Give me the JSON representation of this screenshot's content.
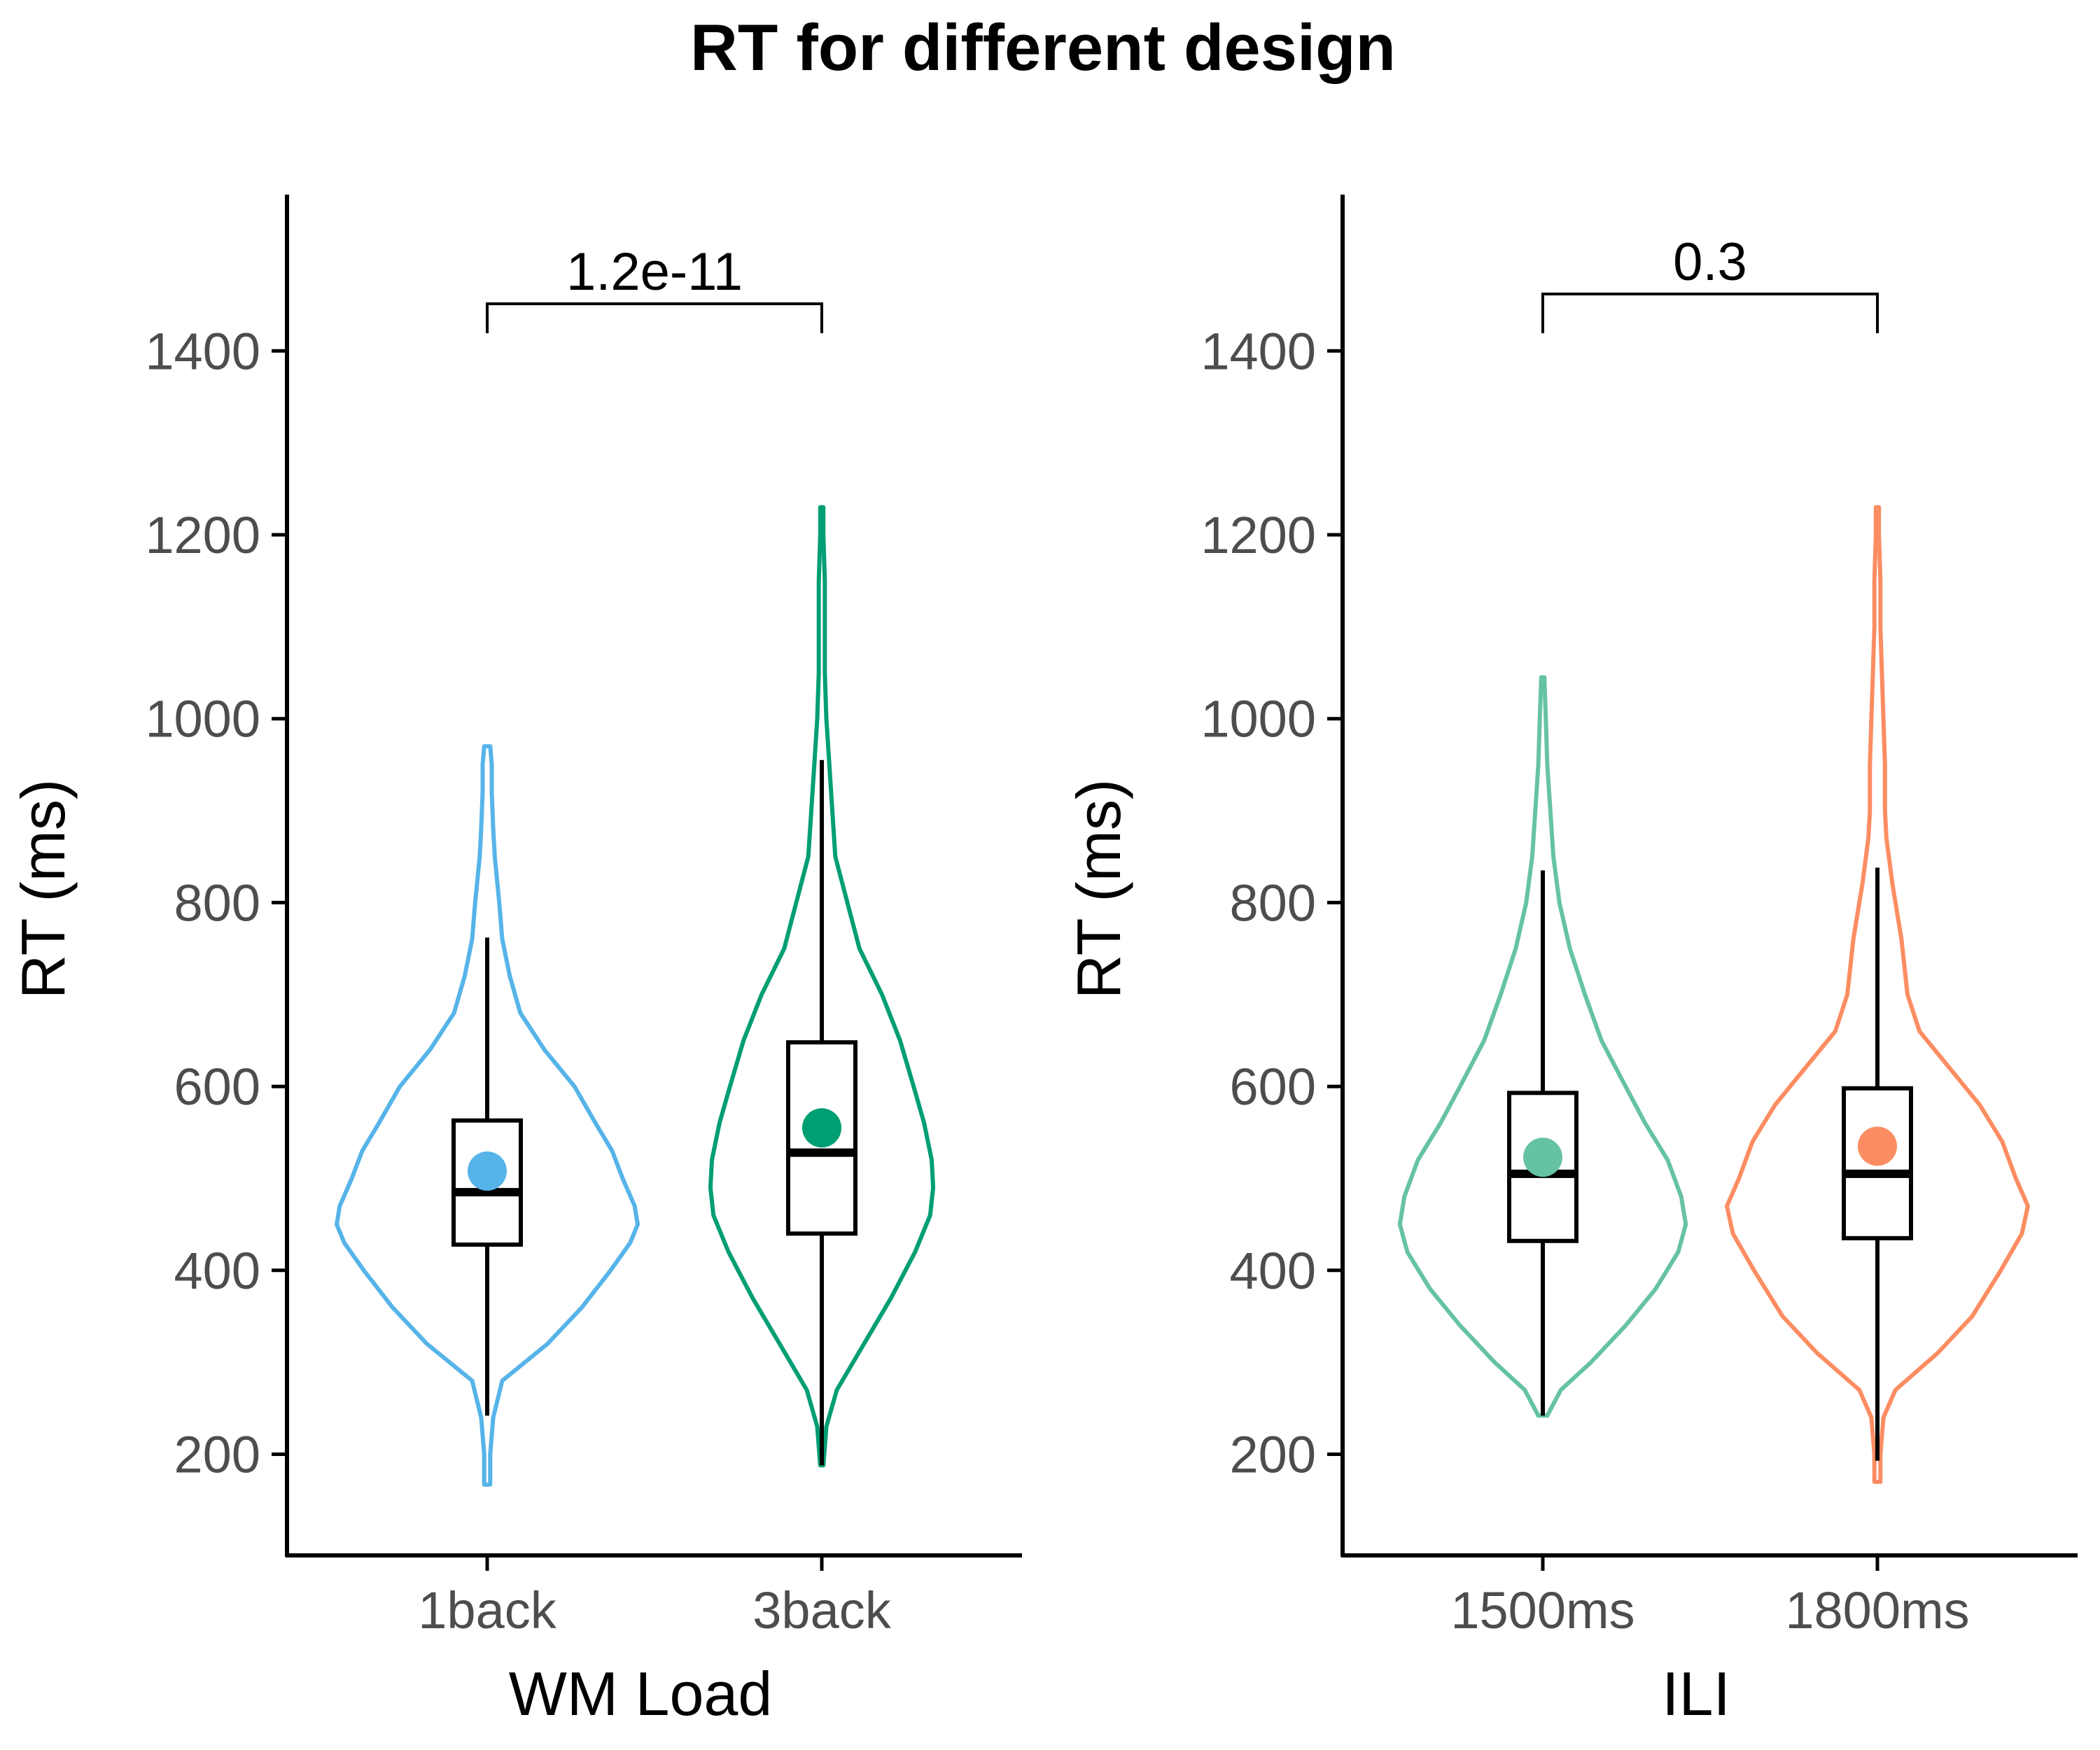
{
  "title": "RT for different design",
  "colors": {
    "axis": "#000000",
    "tick_text": "#4d4d4d",
    "box": "#000000",
    "1back": "#56B4E9",
    "3back": "#009E73",
    "1500ms": "#66C2A5",
    "1800ms": "#FC8D62"
  },
  "chart_data": [
    {
      "type": "violin",
      "title": "RT for different design",
      "xlabel": "WM Load",
      "ylabel": "RT (ms)",
      "ylim": [
        90,
        1570
      ],
      "yticks": [
        200,
        400,
        600,
        800,
        1000,
        1200,
        1400
      ],
      "ytick_labels": [
        "200",
        "400",
        "600",
        "800",
        "1000",
        "1200",
        "1400"
      ],
      "categories": [
        "1back",
        "3back"
      ],
      "grid": false,
      "comparison": {
        "from": "1back",
        "to": "3back",
        "label": "1.2e-11"
      },
      "series": [
        {
          "category": "1back",
          "color": "#56B4E9",
          "mean": 508,
          "box": {
            "whisker_low": 242,
            "q1": 428,
            "median": 485,
            "q3": 563,
            "whisker_high": 762
          },
          "density": [
            [
              167,
              0.02
            ],
            [
              200,
              0.02
            ],
            [
              240,
              0.04
            ],
            [
              280,
              0.1
            ],
            [
              320,
              0.4
            ],
            [
              360,
              0.63
            ],
            [
              400,
              0.82
            ],
            [
              430,
              0.95
            ],
            [
              450,
              1.0
            ],
            [
              470,
              0.98
            ],
            [
              500,
              0.9
            ],
            [
              530,
              0.83
            ],
            [
              560,
              0.72
            ],
            [
              600,
              0.58
            ],
            [
              640,
              0.38
            ],
            [
              680,
              0.22
            ],
            [
              720,
              0.15
            ],
            [
              760,
              0.1
            ],
            [
              800,
              0.08
            ],
            [
              850,
              0.05
            ],
            [
              880,
              0.04
            ],
            [
              920,
              0.03
            ],
            [
              950,
              0.03
            ],
            [
              970,
              0.02
            ]
          ]
        },
        {
          "category": "3back",
          "color": "#009E73",
          "mean": 555,
          "box": {
            "whisker_low": 188,
            "q1": 440,
            "median": 528,
            "q3": 648,
            "whisker_high": 955
          },
          "density": [
            [
              188,
              0.01
            ],
            [
              230,
              0.03
            ],
            [
              270,
              0.1
            ],
            [
              320,
              0.28
            ],
            [
              370,
              0.46
            ],
            [
              420,
              0.62
            ],
            [
              460,
              0.72
            ],
            [
              490,
              0.74
            ],
            [
              520,
              0.73
            ],
            [
              560,
              0.68
            ],
            [
              600,
              0.61
            ],
            [
              650,
              0.52
            ],
            [
              700,
              0.4
            ],
            [
              750,
              0.25
            ],
            [
              800,
              0.17
            ],
            [
              850,
              0.09
            ],
            [
              900,
              0.07
            ],
            [
              950,
              0.05
            ],
            [
              1000,
              0.03
            ],
            [
              1050,
              0.02
            ],
            [
              1100,
              0.02
            ],
            [
              1150,
              0.02
            ],
            [
              1200,
              0.01
            ],
            [
              1230,
              0.01
            ]
          ]
        }
      ]
    },
    {
      "type": "violin",
      "xlabel": "ILI",
      "ylabel": "RT (ms)",
      "ylim": [
        90,
        1570
      ],
      "yticks": [
        200,
        400,
        600,
        800,
        1000,
        1200,
        1400
      ],
      "ytick_labels": [
        "200",
        "400",
        "600",
        "800",
        "1000",
        "1200",
        "1400"
      ],
      "categories": [
        "1500ms",
        "1800ms"
      ],
      "grid": false,
      "comparison": {
        "from": "1500ms",
        "to": "1800ms",
        "label": "0.3"
      },
      "series": [
        {
          "category": "1500ms",
          "color": "#66C2A5",
          "mean": 523,
          "box": {
            "whisker_low": 242,
            "q1": 432,
            "median": 505,
            "q3": 593,
            "whisker_high": 835
          },
          "density": [
            [
              242,
              0.03
            ],
            [
              270,
              0.12
            ],
            [
              300,
              0.32
            ],
            [
              340,
              0.55
            ],
            [
              380,
              0.75
            ],
            [
              420,
              0.9
            ],
            [
              450,
              0.95
            ],
            [
              480,
              0.92
            ],
            [
              520,
              0.83
            ],
            [
              560,
              0.68
            ],
            [
              600,
              0.55
            ],
            [
              650,
              0.39
            ],
            [
              700,
              0.28
            ],
            [
              750,
              0.18
            ],
            [
              800,
              0.11
            ],
            [
              850,
              0.07
            ],
            [
              900,
              0.05
            ],
            [
              950,
              0.03
            ],
            [
              1000,
              0.02
            ],
            [
              1045,
              0.01
            ]
          ]
        },
        {
          "category": "1800ms",
          "color": "#FC8D62",
          "mean": 535,
          "box": {
            "whisker_low": 193,
            "q1": 435,
            "median": 505,
            "q3": 598,
            "whisker_high": 838
          },
          "density": [
            [
              170,
              0.02
            ],
            [
              200,
              0.02
            ],
            [
              240,
              0.04
            ],
            [
              270,
              0.12
            ],
            [
              310,
              0.4
            ],
            [
              350,
              0.63
            ],
            [
              400,
              0.82
            ],
            [
              440,
              0.96
            ],
            [
              470,
              1.0
            ],
            [
              500,
              0.92
            ],
            [
              540,
              0.83
            ],
            [
              580,
              0.68
            ],
            [
              620,
              0.48
            ],
            [
              660,
              0.28
            ],
            [
              700,
              0.2
            ],
            [
              760,
              0.16
            ],
            [
              820,
              0.1
            ],
            [
              870,
              0.06
            ],
            [
              900,
              0.05
            ],
            [
              950,
              0.05
            ],
            [
              1000,
              0.04
            ],
            [
              1050,
              0.03
            ],
            [
              1100,
              0.02
            ],
            [
              1150,
              0.02
            ],
            [
              1200,
              0.01
            ],
            [
              1230,
              0.01
            ]
          ]
        }
      ]
    }
  ]
}
